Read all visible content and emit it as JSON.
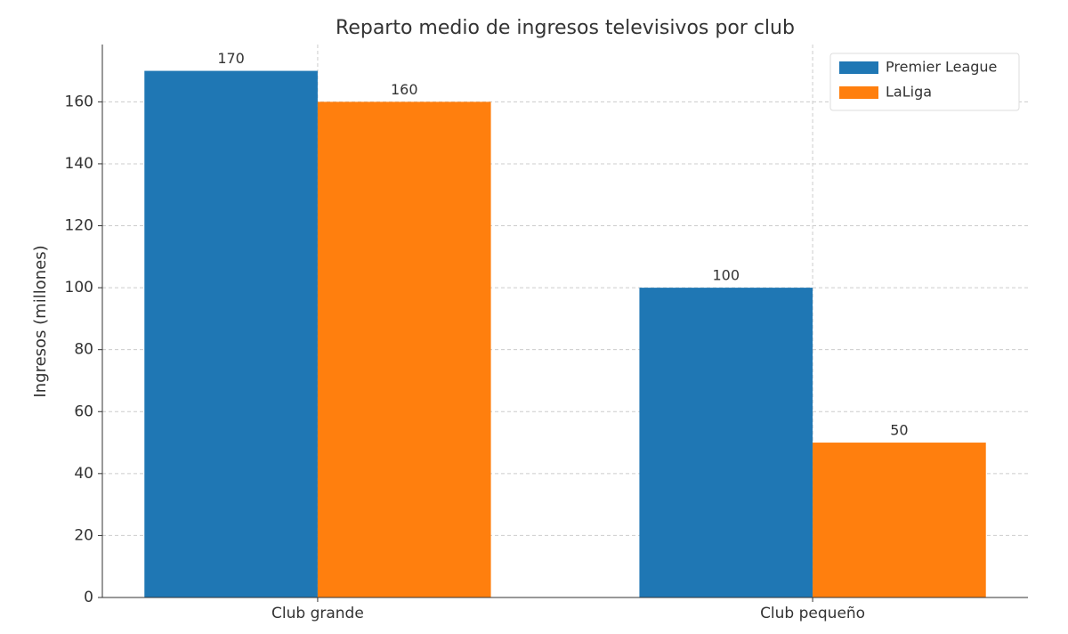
{
  "chart_data": {
    "type": "bar",
    "title": "Reparto medio de ingresos televisivos por club",
    "y_label": "Ingresos (millones)",
    "categories": [
      "Club grande",
      "Club pequeño"
    ],
    "series": [
      {
        "name": "Premier League",
        "color": "#1f77b4",
        "values": [
          170,
          100
        ]
      },
      {
        "name": "LaLiga",
        "color": "#ff7f0e",
        "values": [
          160,
          50
        ]
      }
    ],
    "ylim": [
      0,
      178.5
    ],
    "yticks": [
      0,
      20,
      40,
      60,
      80,
      100,
      120,
      140,
      160
    ],
    "grid": true,
    "legend": "upper right"
  }
}
